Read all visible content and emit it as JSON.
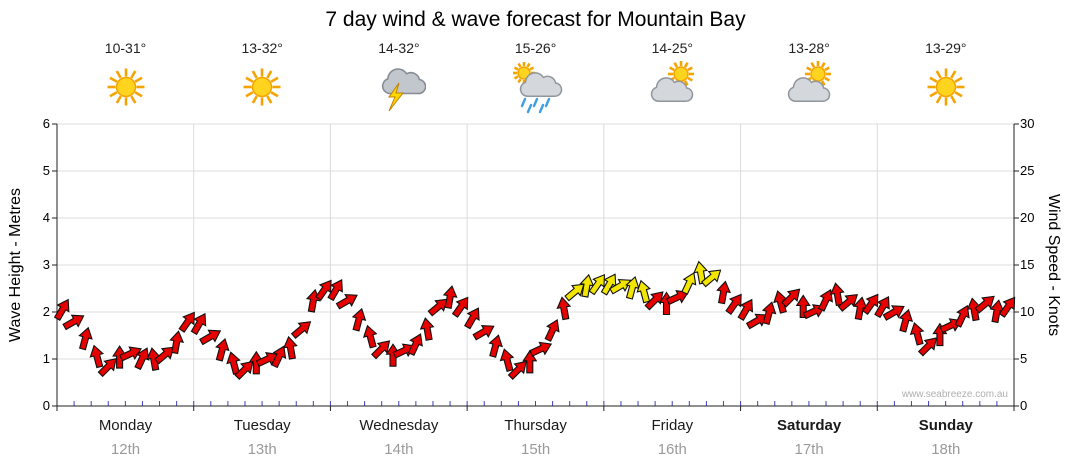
{
  "title": "7 day wind & wave forecast for Mountain Bay",
  "watermark": "www.seabreeze.com.au",
  "left_axis": {
    "label": "Wave Height - Metres",
    "min": 0,
    "max": 6,
    "ticks": [
      0,
      1,
      2,
      3,
      4,
      5,
      6
    ]
  },
  "right_axis": {
    "label": "Wind Speed - Knots",
    "min": 0,
    "max": 30,
    "ticks": [
      0,
      5,
      10,
      15,
      20,
      25,
      30
    ]
  },
  "days": [
    {
      "name": "Monday",
      "date": "12th",
      "temp": "10-31°",
      "icon": "sunny",
      "bold": false
    },
    {
      "name": "Tuesday",
      "date": "13th",
      "temp": "13-32°",
      "icon": "sunny",
      "bold": false
    },
    {
      "name": "Wednesday",
      "date": "14th",
      "temp": "14-32°",
      "icon": "storm",
      "bold": false
    },
    {
      "name": "Thursday",
      "date": "15th",
      "temp": "15-26°",
      "icon": "showers",
      "bold": false
    },
    {
      "name": "Friday",
      "date": "16th",
      "temp": "14-25°",
      "icon": "partly-cloudy",
      "bold": false
    },
    {
      "name": "Saturday",
      "date": "17th",
      "temp": "13-28°",
      "icon": "partly-cloudy",
      "bold": true
    },
    {
      "name": "Sunday",
      "date": "18th",
      "temp": "13-29°",
      "icon": "sunny",
      "bold": true
    }
  ],
  "chart_data": {
    "type": "scatter",
    "title": "7 day wind & wave forecast for Mountain Bay",
    "xlabel": "",
    "ylabel_left": "Wave Height - Metres",
    "ylabel_right": "Wind Speed - Knots",
    "x_range_days": [
      0,
      7
    ],
    "left_ylim": [
      0,
      6
    ],
    "right_ylim": [
      0,
      30
    ],
    "grid": true,
    "minor_tick_color": "#4040c8",
    "series": [
      {
        "name": "Wind speed arrows",
        "point_format": [
          "day_position",
          "knots",
          "arrow_direction_deg",
          "color_key"
        ],
        "colors": {
          "r": "#e60000",
          "y": "#f2e600"
        },
        "points": [
          [
            0.042,
            10.3,
            300,
            "r"
          ],
          [
            0.125,
            9.0,
            330,
            "r"
          ],
          [
            0.208,
            7.2,
            285,
            "r"
          ],
          [
            0.292,
            5.3,
            255,
            "r"
          ],
          [
            0.375,
            4.2,
            315,
            "r"
          ],
          [
            0.458,
            5.2,
            270,
            "r"
          ],
          [
            0.542,
            5.6,
            335,
            "r"
          ],
          [
            0.625,
            5.1,
            295,
            "r"
          ],
          [
            0.708,
            5.0,
            260,
            "r"
          ],
          [
            0.792,
            5.5,
            320,
            "r"
          ],
          [
            0.875,
            6.8,
            280,
            "r"
          ],
          [
            0.958,
            9.0,
            305,
            "r"
          ],
          [
            1.042,
            8.8,
            300,
            "r"
          ],
          [
            1.125,
            7.4,
            330,
            "r"
          ],
          [
            1.208,
            6.0,
            285,
            "r"
          ],
          [
            1.292,
            4.6,
            255,
            "r"
          ],
          [
            1.375,
            3.9,
            315,
            "r"
          ],
          [
            1.458,
            4.6,
            270,
            "r"
          ],
          [
            1.542,
            5.0,
            335,
            "r"
          ],
          [
            1.625,
            5.3,
            295,
            "r"
          ],
          [
            1.708,
            6.2,
            260,
            "r"
          ],
          [
            1.792,
            8.2,
            320,
            "r"
          ],
          [
            1.875,
            11.2,
            280,
            "r"
          ],
          [
            1.958,
            12.4,
            305,
            "r"
          ],
          [
            2.042,
            12.4,
            300,
            "r"
          ],
          [
            2.125,
            11.2,
            330,
            "r"
          ],
          [
            2.208,
            9.2,
            285,
            "r"
          ],
          [
            2.292,
            7.4,
            255,
            "r"
          ],
          [
            2.375,
            6.1,
            315,
            "r"
          ],
          [
            2.458,
            5.4,
            270,
            "r"
          ],
          [
            2.542,
            5.9,
            335,
            "r"
          ],
          [
            2.625,
            6.6,
            295,
            "r"
          ],
          [
            2.708,
            8.2,
            260,
            "r"
          ],
          [
            2.792,
            10.6,
            320,
            "r"
          ],
          [
            2.875,
            11.6,
            280,
            "r"
          ],
          [
            2.958,
            10.6,
            305,
            "r"
          ],
          [
            3.042,
            9.4,
            300,
            "r"
          ],
          [
            3.125,
            7.9,
            330,
            "r"
          ],
          [
            3.208,
            6.4,
            285,
            "r"
          ],
          [
            3.292,
            4.9,
            255,
            "r"
          ],
          [
            3.375,
            3.9,
            315,
            "r"
          ],
          [
            3.458,
            4.7,
            270,
            "r"
          ],
          [
            3.542,
            6.1,
            335,
            "r"
          ],
          [
            3.625,
            8.1,
            295,
            "r"
          ],
          [
            3.708,
            10.4,
            260,
            "r"
          ],
          [
            3.792,
            12.2,
            320,
            "y"
          ],
          [
            3.875,
            12.8,
            280,
            "y"
          ],
          [
            3.958,
            13.0,
            305,
            "y"
          ],
          [
            4.042,
            13.0,
            300,
            "y"
          ],
          [
            4.125,
            12.8,
            330,
            "y"
          ],
          [
            4.208,
            12.6,
            285,
            "y"
          ],
          [
            4.292,
            12.2,
            255,
            "y"
          ],
          [
            4.375,
            11.3,
            315,
            "r"
          ],
          [
            4.458,
            10.9,
            270,
            "r"
          ],
          [
            4.542,
            11.6,
            335,
            "r"
          ],
          [
            4.625,
            13.1,
            295,
            "y"
          ],
          [
            4.708,
            14.2,
            260,
            "y"
          ],
          [
            4.792,
            13.7,
            320,
            "y"
          ],
          [
            4.875,
            12.1,
            280,
            "r"
          ],
          [
            4.958,
            10.9,
            305,
            "r"
          ],
          [
            5.042,
            10.3,
            300,
            "r"
          ],
          [
            5.125,
            9.1,
            330,
            "r"
          ],
          [
            5.208,
            9.9,
            285,
            "r"
          ],
          [
            5.292,
            11.1,
            255,
            "r"
          ],
          [
            5.375,
            11.6,
            315,
            "r"
          ],
          [
            5.458,
            10.6,
            270,
            "r"
          ],
          [
            5.542,
            10.1,
            335,
            "r"
          ],
          [
            5.625,
            11.3,
            295,
            "r"
          ],
          [
            5.708,
            11.9,
            260,
            "r"
          ],
          [
            5.792,
            11.1,
            320,
            "r"
          ],
          [
            5.875,
            10.4,
            280,
            "r"
          ],
          [
            5.958,
            10.9,
            305,
            "r"
          ],
          [
            6.042,
            10.6,
            300,
            "r"
          ],
          [
            6.125,
            10.0,
            330,
            "r"
          ],
          [
            6.208,
            9.1,
            285,
            "r"
          ],
          [
            6.292,
            7.7,
            255,
            "r"
          ],
          [
            6.375,
            6.4,
            315,
            "r"
          ],
          [
            6.458,
            7.6,
            270,
            "r"
          ],
          [
            6.542,
            8.6,
            335,
            "r"
          ],
          [
            6.625,
            9.6,
            295,
            "r"
          ],
          [
            6.708,
            10.3,
            260,
            "r"
          ],
          [
            6.792,
            10.9,
            320,
            "r"
          ],
          [
            6.875,
            10.1,
            280,
            "r"
          ],
          [
            6.958,
            10.6,
            305,
            "r"
          ]
        ]
      }
    ]
  }
}
